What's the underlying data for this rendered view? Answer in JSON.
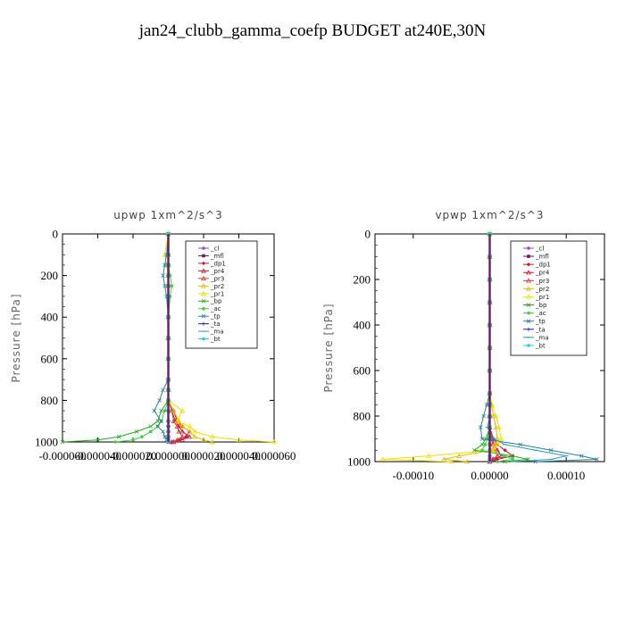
{
  "figure": {
    "title": "jan24_clubb_gamma_coefp  BUDGET at240E,30N"
  },
  "legend_entries": [
    "_cl",
    "_mfl",
    "_dp1",
    "_pr4",
    "_pr3",
    "_pr2",
    "_pr1",
    "_bp",
    "_ac",
    "_tp",
    "_ta",
    "_ma",
    "_bt"
  ],
  "colors": {
    "_cl": "#8a4fc4",
    "_mfl": "#6a1a6a",
    "_dp1": "#c41a3a",
    "_pr4": "#c41a3a",
    "_pr3": "#d43a3a",
    "_pr2": "#e6b800",
    "_pr1": "#f0e000",
    "_bp": "#22aa22",
    "_ac": "#44cc44",
    "_tp": "#2a7fa0",
    "_ta": "#1a1ad0",
    "_ma": "#2a9fb0",
    "_bt": "#22d0e0"
  },
  "chart_data": [
    {
      "type": "line",
      "title": "upwp   1xm^2/s^3",
      "ylabel": "Pressure [hPa]",
      "xlabel": "",
      "xlim": [
        -6e-05,
        6e-05
      ],
      "ylim": [
        1000,
        0
      ],
      "x_tick_labels": [
        "-0.000060",
        "-0.000040",
        "-0.000020",
        "0.000000",
        "0.000020",
        "0.000040",
        "0.000060"
      ],
      "x_ticks": [
        -6e-05,
        -4e-05,
        -2e-05,
        0,
        2e-05,
        4e-05,
        6e-05
      ],
      "y_ticks": [
        0,
        200,
        400,
        600,
        800,
        1000
      ],
      "y_tick_labels": [
        "0",
        "200",
        "400",
        "600",
        "800",
        "1000"
      ],
      "legend": "top-right",
      "y": [
        0,
        100,
        150,
        200,
        250,
        300,
        400,
        500,
        600,
        700,
        750,
        800,
        850,
        900,
        925,
        950,
        975,
        990,
        1000
      ],
      "series": [
        {
          "name": "_cl",
          "x": [
            0,
            0,
            0,
            0,
            0,
            0,
            0,
            0,
            0,
            0,
            0,
            0,
            0,
            0,
            0,
            0,
            0,
            0,
            0
          ]
        },
        {
          "name": "_mfl",
          "x": [
            0,
            0,
            0,
            0,
            0,
            0,
            0,
            0,
            0,
            0,
            0,
            0,
            0,
            0,
            0,
            0,
            0,
            0,
            0
          ]
        },
        {
          "name": "_dp1",
          "x": [
            0,
            0,
            0,
            0,
            0,
            0,
            0,
            0,
            0,
            0,
            0,
            0,
            3e-06,
            5e-06,
            8e-06,
            1.2e-05,
            1e-05,
            6e-06,
            2e-06
          ]
        },
        {
          "name": "_pr4",
          "x": [
            0,
            0,
            0,
            0,
            0,
            0,
            0,
            0,
            0,
            0,
            0,
            0,
            2e-06,
            4e-06,
            6e-06,
            8e-06,
            1.2e-05,
            8e-06,
            3e-06
          ]
        },
        {
          "name": "_pr3",
          "x": [
            0,
            0,
            0,
            0,
            0,
            0,
            0,
            0,
            0,
            0,
            0,
            0,
            2e-06,
            3e-06,
            5e-06,
            6e-06,
            8e-06,
            5e-06,
            2e-06
          ]
        },
        {
          "name": "_pr2",
          "x": [
            0,
            0,
            0,
            0,
            0,
            0,
            0,
            0,
            0,
            0,
            0,
            0,
            3e-06,
            6e-06,
            8e-06,
            1.2e-05,
            1.5e-05,
            2e-05,
            2.5e-05
          ]
        },
        {
          "name": "_pr1",
          "x": [
            0,
            -2e-06,
            -1e-06,
            0,
            0,
            0,
            0,
            0,
            0,
            0,
            0,
            0,
            8e-06,
            5e-06,
            1.2e-05,
            1.5e-05,
            2.5e-05,
            4e-05,
            6e-05
          ]
        },
        {
          "name": "_bp",
          "x": [
            0,
            0,
            0,
            0,
            0,
            0,
            0,
            0,
            0,
            0,
            0,
            0,
            -4e-06,
            -6e-06,
            -1e-05,
            -1.8e-05,
            -2.8e-05,
            -4e-05,
            -6e-05
          ]
        },
        {
          "name": "_ac",
          "x": [
            0,
            0,
            0,
            1e-06,
            2e-06,
            1e-06,
            0,
            0,
            0,
            0,
            0,
            0,
            -2e-06,
            -4e-06,
            -6e-06,
            -1e-05,
            -1.5e-05,
            -2e-05,
            -3e-05
          ]
        },
        {
          "name": "_tp",
          "x": [
            0,
            -1e-06,
            -2e-06,
            -3e-06,
            -2e-06,
            -1e-06,
            0,
            0,
            0,
            0,
            -3e-06,
            -5e-06,
            -8e-06,
            -4e-06,
            -6e-06,
            -3e-06,
            -2e-06,
            -1e-06,
            0
          ]
        },
        {
          "name": "_ta",
          "x": [
            0,
            0,
            0,
            0,
            0,
            0,
            0,
            0,
            0,
            0,
            0,
            0,
            0,
            0,
            0,
            0,
            0,
            0,
            0
          ]
        },
        {
          "name": "_ma",
          "x": [
            0,
            0,
            0,
            0,
            0,
            0,
            0,
            0,
            0,
            0,
            0,
            0,
            0,
            0,
            0,
            0,
            0,
            0,
            0
          ]
        },
        {
          "name": "_bt",
          "x": [
            0,
            0,
            0,
            0,
            0,
            0,
            0,
            0,
            0,
            0,
            0,
            0,
            0,
            0,
            0,
            0,
            0,
            0,
            0
          ]
        }
      ]
    },
    {
      "type": "line",
      "title": "vpwp   1xm^2/s^3",
      "ylabel": "Pressure [hPa]",
      "xlabel": "",
      "xlim": [
        -0.00015,
        0.00015
      ],
      "ylim": [
        1000,
        0
      ],
      "x_tick_labels": [
        "-0.00010",
        "0.00000",
        "0.00010"
      ],
      "x_ticks": [
        -0.0001,
        0,
        0.0001
      ],
      "y_ticks": [
        0,
        200,
        400,
        600,
        800,
        1000
      ],
      "y_tick_labels": [
        "0",
        "200",
        "400",
        "600",
        "800",
        "1000"
      ],
      "legend": "top-right",
      "y": [
        0,
        100,
        200,
        300,
        400,
        500,
        600,
        700,
        750,
        800,
        850,
        900,
        925,
        950,
        975,
        990,
        1000
      ],
      "series": [
        {
          "name": "_cl",
          "x": [
            0,
            0,
            0,
            0,
            0,
            0,
            0,
            0,
            0,
            0,
            0,
            0,
            0,
            0,
            0,
            0,
            0
          ]
        },
        {
          "name": "_mfl",
          "x": [
            0,
            0,
            0,
            0,
            0,
            0,
            0,
            0,
            0,
            0,
            0,
            0,
            0,
            0,
            0,
            0,
            0
          ]
        },
        {
          "name": "_dp1",
          "x": [
            0,
            0,
            0,
            0,
            0,
            0,
            0,
            0,
            0,
            0,
            0,
            5e-06,
            1e-05,
            2e-05,
            3e-05,
            1e-05,
            0
          ]
        },
        {
          "name": "_pr4",
          "x": [
            0,
            0,
            0,
            0,
            0,
            0,
            0,
            0,
            0,
            0,
            0,
            3e-06,
            6e-06,
            1e-05,
            1.5e-05,
            5e-06,
            0
          ]
        },
        {
          "name": "_pr3",
          "x": [
            0,
            0,
            0,
            0,
            0,
            0,
            0,
            0,
            0,
            0,
            0,
            2e-06,
            4e-06,
            6e-06,
            1e-05,
            4e-06,
            0
          ]
        },
        {
          "name": "_pr2",
          "x": [
            0,
            0,
            0,
            0,
            0,
            0,
            0,
            0,
            2e-06,
            5e-06,
            8e-06,
            1e-05,
            6e-06,
            3e-06,
            -4e-05,
            -6e-05,
            -3e-05
          ]
        },
        {
          "name": "_pr1",
          "x": [
            0,
            0,
            0,
            0,
            0,
            0,
            0,
            0,
            3e-06,
            8e-06,
            1.2e-05,
            1.5e-05,
            1e-05,
            5e-06,
            -8e-05,
            -0.00014,
            -5e-05
          ]
        },
        {
          "name": "_bp",
          "x": [
            0,
            0,
            0,
            0,
            0,
            0,
            0,
            0,
            0,
            0,
            0,
            -5e-06,
            -1e-05,
            -2e-05,
            3e-05,
            5e-05,
            2e-05
          ]
        },
        {
          "name": "_ac",
          "x": [
            0,
            0,
            0,
            0,
            0,
            0,
            0,
            0,
            0,
            0,
            0,
            -3e-06,
            -6e-06,
            -1e-05,
            2e-05,
            3e-05,
            1e-05
          ]
        },
        {
          "name": "_tp",
          "x": [
            0,
            0,
            0,
            0,
            0,
            0,
            0,
            0,
            -4e-06,
            -8e-06,
            -1.2e-05,
            -1e-05,
            4e-05,
            8e-05,
            0.00012,
            0.00014,
            6e-05
          ]
        },
        {
          "name": "_ta",
          "x": [
            0,
            0,
            0,
            0,
            0,
            0,
            0,
            0,
            0,
            0,
            0,
            0,
            0,
            0,
            0,
            0,
            0
          ]
        },
        {
          "name": "_ma",
          "x": [
            0,
            0,
            0,
            0,
            0,
            0,
            0,
            0,
            0,
            0,
            -3e-06,
            5e-06,
            2e-05,
            6e-05,
            0.0001,
            8e-05,
            3e-05
          ]
        },
        {
          "name": "_bt",
          "x": [
            0,
            0,
            0,
            0,
            0,
            0,
            0,
            0,
            0,
            0,
            0,
            0,
            0,
            0,
            0,
            0,
            0
          ]
        }
      ]
    }
  ]
}
